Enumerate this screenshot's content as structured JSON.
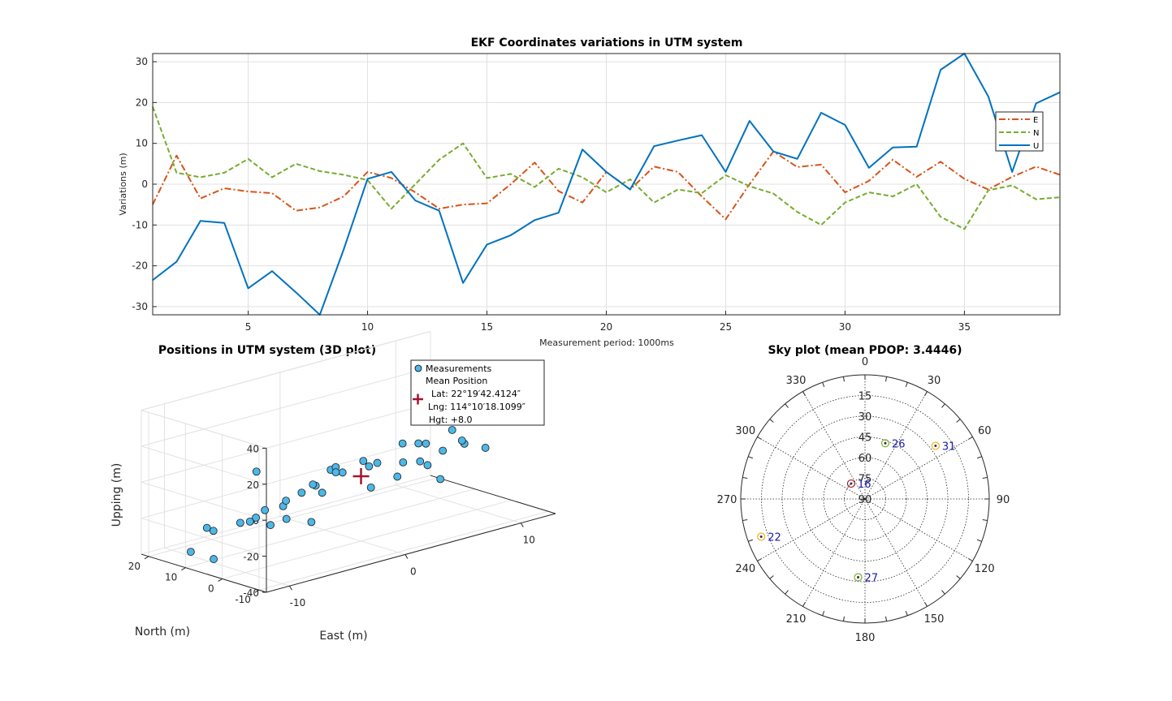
{
  "chart_data": [
    {
      "type": "line",
      "title": "EKF Coordinates variations in UTM system",
      "xlabel": "Measurement period: 1000ms",
      "ylabel": "Variations (m)",
      "xlim": [
        1,
        39
      ],
      "ylim": [
        -32,
        32
      ],
      "xticks": [
        5,
        10,
        15,
        20,
        25,
        30,
        35
      ],
      "yticks": [
        -30,
        -20,
        -10,
        0,
        10,
        20,
        30
      ],
      "grid": true,
      "legend_position": "right",
      "x": [
        1,
        2,
        3,
        4,
        5,
        6,
        7,
        8,
        9,
        10,
        11,
        12,
        13,
        14,
        15,
        16,
        17,
        18,
        19,
        20,
        21,
        22,
        23,
        24,
        25,
        26,
        27,
        28,
        29,
        30,
        31,
        32,
        33,
        34,
        35,
        36,
        37,
        38,
        39
      ],
      "series": [
        {
          "name": "E",
          "color": "#d95319",
          "dash": "dashdot",
          "values": [
            -5,
            7,
            -3.5,
            -1,
            -1.8,
            -2.2,
            -6.5,
            -5.7,
            -3,
            3,
            1.5,
            -2,
            -6,
            -5,
            -4.7,
            0,
            5.3,
            -1.7,
            -4.5,
            3,
            -1.3,
            4.3,
            3,
            -3,
            -8.6,
            0,
            8,
            4.2,
            4.8,
            -2,
            0.8,
            6,
            1.8,
            5.5,
            1.3,
            -1.3,
            1.8,
            4.3,
            2.3
          ]
        },
        {
          "name": "N",
          "color": "#77ac30",
          "dash": "dashed",
          "values": [
            19,
            2.8,
            1.7,
            2.8,
            6.2,
            1.7,
            5,
            3.2,
            2.3,
            1,
            -6,
            0,
            6,
            10,
            1.5,
            2.5,
            -0.7,
            3.8,
            1.7,
            -2,
            1.2,
            -4.5,
            -1.3,
            -2.2,
            2.2,
            -0.5,
            -2.3,
            -6.8,
            -10,
            -4.5,
            -2,
            -3,
            0,
            -8,
            -11,
            -1.5,
            -0.3,
            -3.7,
            -3.2
          ]
        },
        {
          "name": "U",
          "color": "#0072bd",
          "dash": "solid",
          "values": [
            -23.5,
            -19,
            -9,
            -9.5,
            -25.5,
            -21.3,
            -26.5,
            -32,
            -16,
            1.3,
            3,
            -4,
            -6.5,
            -24.2,
            -14.8,
            -12.5,
            -8.8,
            -7,
            8.5,
            3,
            -1.3,
            9.3,
            10.7,
            12,
            3,
            15.5,
            8,
            6.2,
            17.5,
            14.5,
            4,
            9,
            9.2,
            28,
            32,
            21.5,
            3,
            19.8,
            22.5
          ]
        }
      ]
    },
    {
      "type": "scatter",
      "title": "Positions in UTM system (3D plot)",
      "xlabel": "East (m)",
      "ylabel": "North (m)",
      "zlabel": "Upping (m)",
      "xlim": [
        -12,
        13
      ],
      "ylim": [
        -12,
        22
      ],
      "zlim": [
        -40,
        40
      ],
      "xticks": [
        -10,
        0,
        10
      ],
      "yticks": [
        -10,
        0,
        10,
        20
      ],
      "zticks": [
        -40,
        -20,
        0,
        20,
        40
      ],
      "grid": true,
      "marker_color": "#4db7e8",
      "mean_marker_color": "#a2142f",
      "legend": {
        "measurements_label": "Measurements",
        "mean_label": "Mean Position",
        "lat": "Lat: 22°19′42.4124″",
        "lng": "Lng: 114°10′18.1099″",
        "hgt": "Hgt: +8.0"
      },
      "points": [
        [
          -3.0,
          19.0,
          -8.0
        ],
        [
          -10.8,
          6.1,
          -34.9
        ],
        [
          -5.8,
          7.9,
          -17.6
        ],
        [
          0.0,
          13.5,
          -37.8
        ],
        [
          -9.2,
          3.9,
          -16.2
        ],
        [
          -9.0,
          13.6,
          -25.4
        ],
        [
          -11.0,
          11.7,
          -34.0
        ],
        [
          -3.3,
          9.9,
          -28.1
        ],
        [
          -6.3,
          4.8,
          -23.1
        ],
        [
          -5.4,
          4.2,
          -13.8
        ],
        [
          -3.5,
          9.4,
          -17.3
        ],
        [
          -5.4,
          11.6,
          -24.8
        ],
        [
          -8.5,
          13.4,
          -27.8
        ],
        [
          -3.0,
          2.9,
          -5.8
        ],
        [
          -1.7,
          2.9,
          0.7
        ],
        [
          -3.1,
          6.4,
          -11.7
        ],
        [
          -6.2,
          10.7,
          -25.0
        ],
        [
          -2.0,
          6.8,
          -9.3
        ],
        [
          2.7,
          -2.8,
          11.2
        ],
        [
          5.6,
          2.0,
          3.2
        ],
        [
          3.0,
          -2.0,
          -0.3
        ],
        [
          -0.6,
          5.0,
          -1.0
        ],
        [
          0.8,
          1.9,
          1.9
        ],
        [
          8.3,
          -2.0,
          0.8
        ],
        [
          -1.2,
          6.8,
          -15.3
        ],
        [
          -0.2,
          4.4,
          -4.3
        ],
        [
          5.1,
          -1.6,
          6.2
        ],
        [
          1.2,
          1.6,
          -1.6
        ],
        [
          1.3,
          1.4,
          -13.4
        ],
        [
          5.3,
          0.6,
          -5.4
        ],
        [
          6.8,
          -3.4,
          11.9
        ],
        [
          0.3,
          7.8,
          -7.2
        ],
        [
          8.4,
          -7.4,
          1.7
        ],
        [
          2.9,
          4.7,
          -4.6
        ],
        [
          3.3,
          0.5,
          -10.3
        ],
        [
          6.1,
          1.1,
          -9.2
        ],
        [
          6.4,
          -2.1,
          0.3
        ],
        [
          6.5,
          -7.0,
          8.8
        ],
        [
          6.7,
          -0.5,
          -17.0
        ]
      ],
      "mean": [
        0,
        0,
        -4
      ]
    },
    {
      "type": "polar",
      "title": "Sky plot (mean PDOP: 3.4446)",
      "angle_labels": [
        "0",
        "30",
        "60",
        "90",
        "120",
        "150",
        "180",
        "210",
        "240",
        "270",
        "300",
        "330"
      ],
      "elevation_labels": [
        "15",
        "30",
        "45",
        "60",
        "75",
        "90"
      ],
      "grid": true,
      "label_color": "#1a1aa6",
      "satellites": [
        {
          "prn": "26",
          "azimuth": 20,
          "elevation": 47,
          "color": "#77ac30"
        },
        {
          "prn": "31",
          "azimuth": 53,
          "elevation": 26,
          "color": "#edb120"
        },
        {
          "prn": "16",
          "azimuth": 318,
          "elevation": 75,
          "color": "#a2142f"
        },
        {
          "prn": "22",
          "azimuth": 250,
          "elevation": 10,
          "color": "#edb120"
        },
        {
          "prn": "27",
          "azimuth": 185,
          "elevation": 33,
          "color": "#77ac30"
        }
      ]
    }
  ]
}
